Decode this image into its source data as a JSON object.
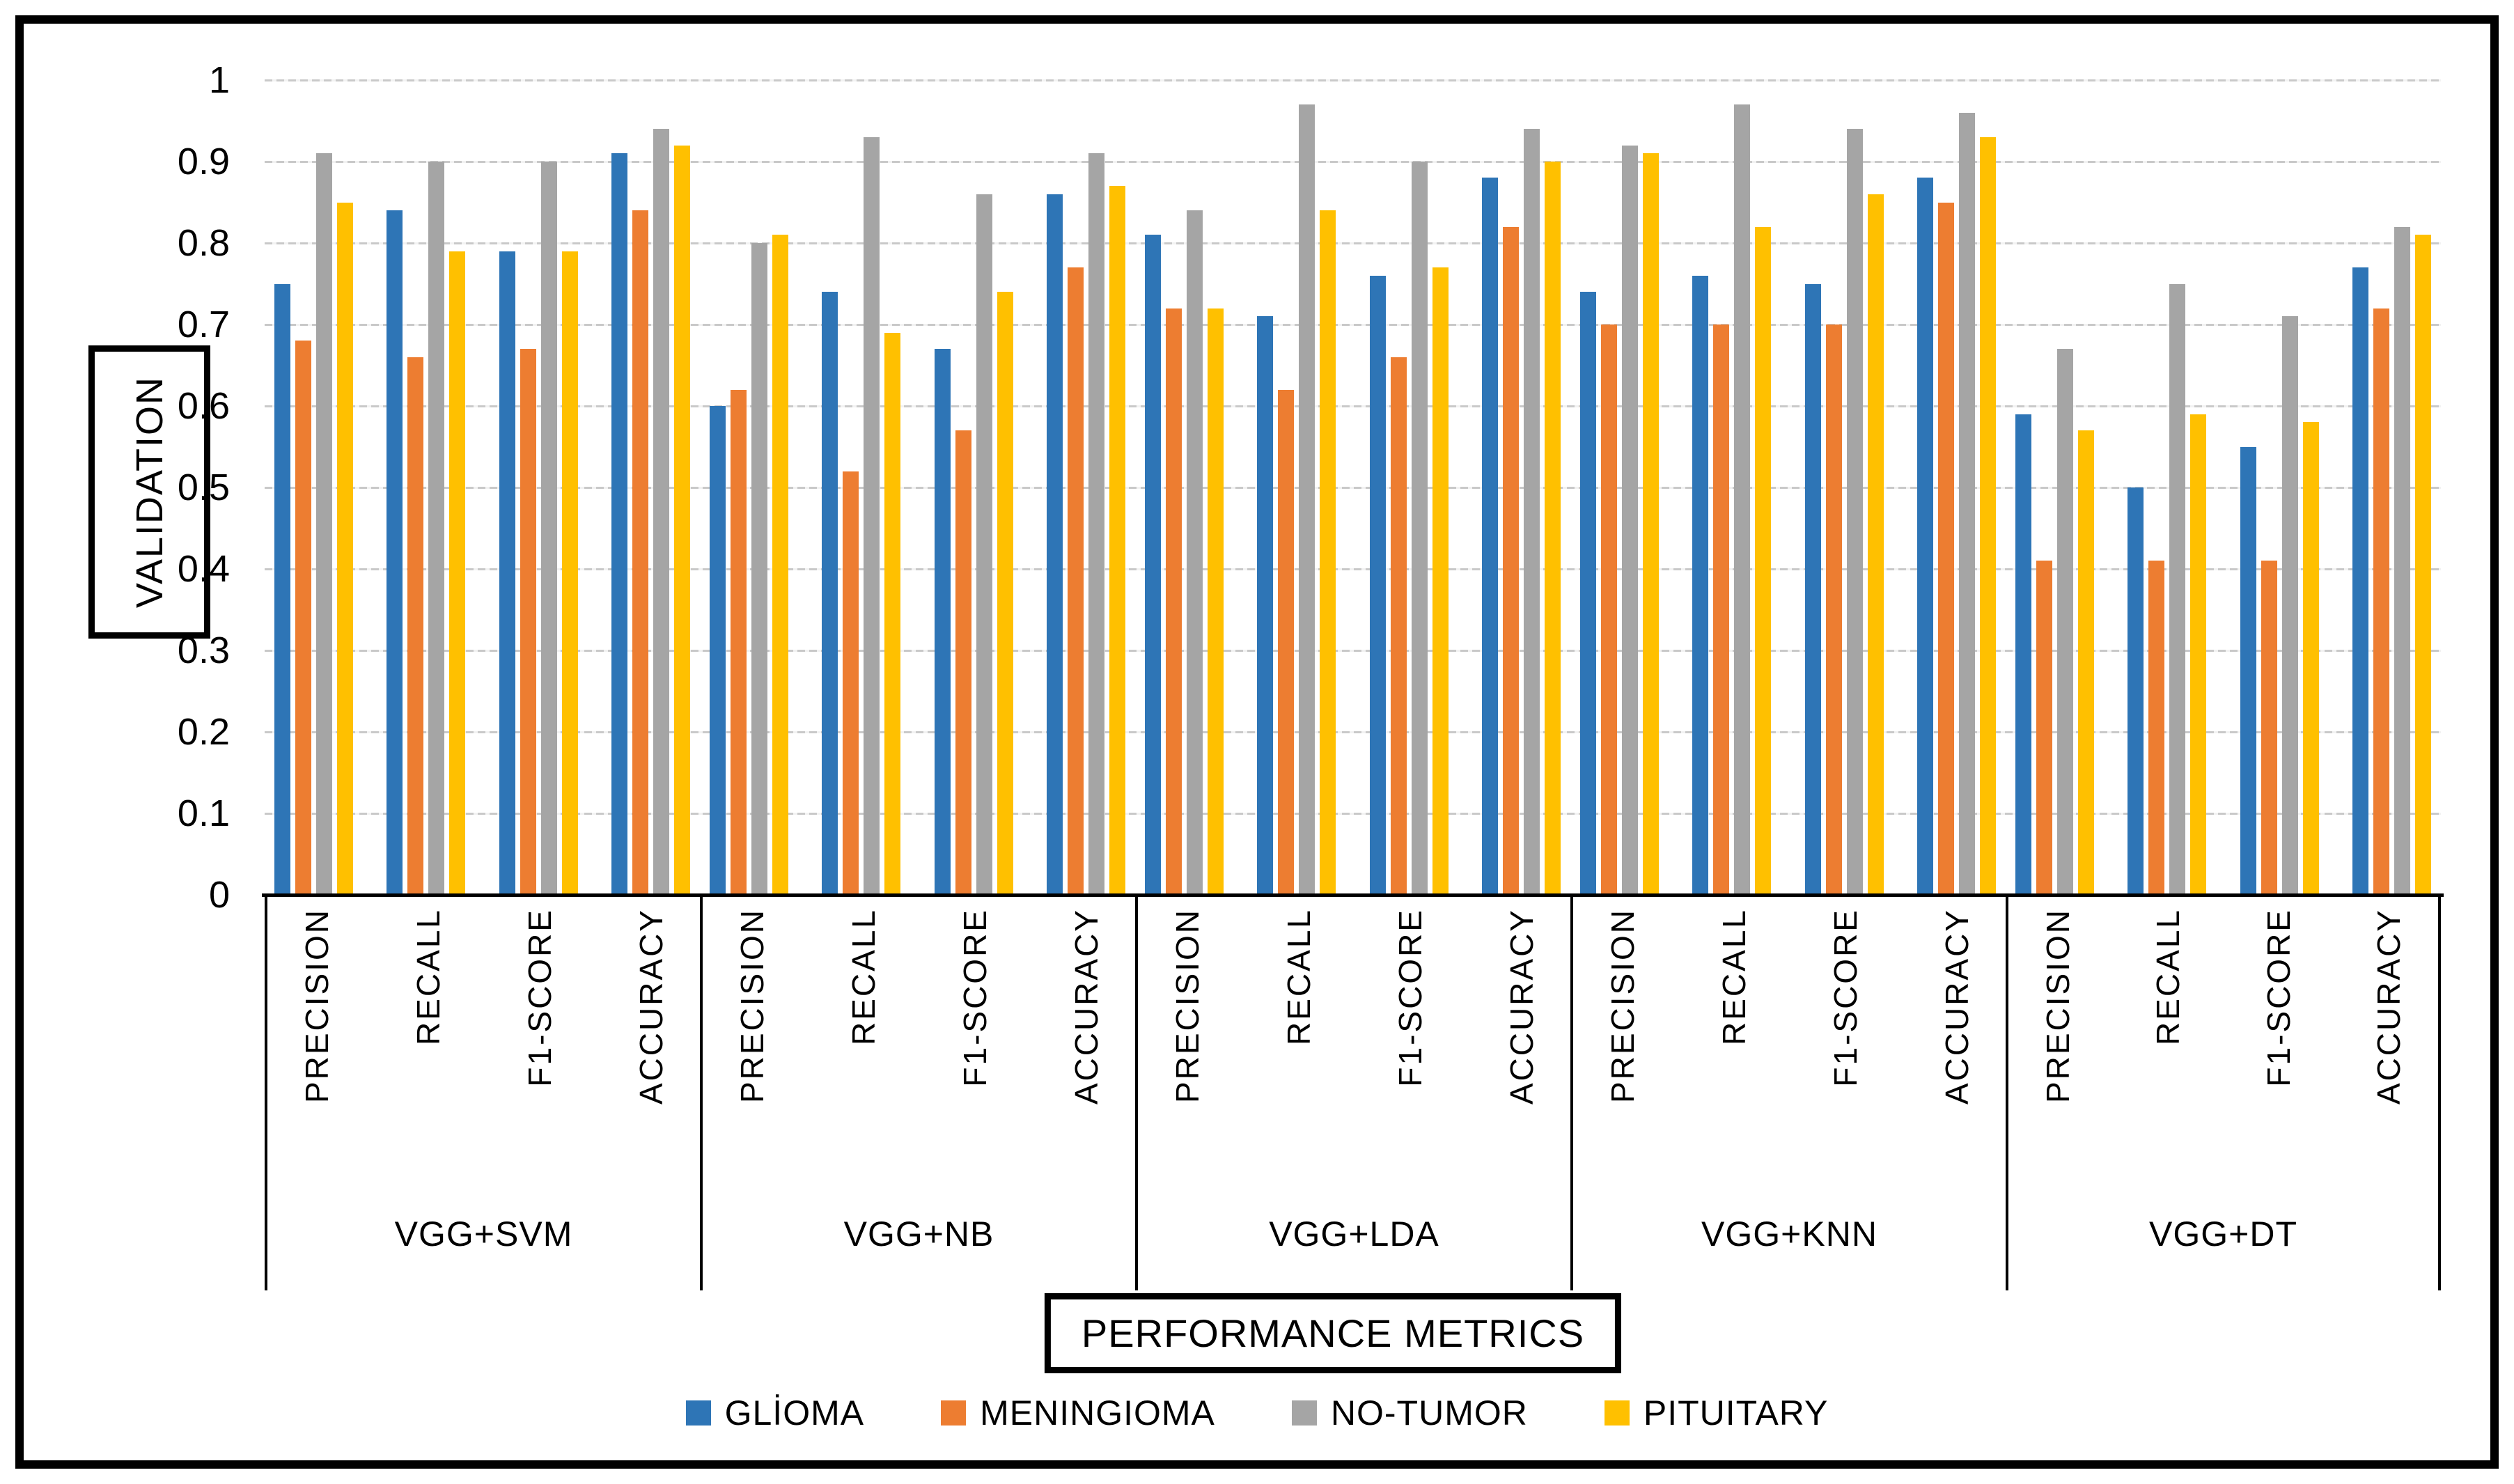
{
  "chart_data": {
    "type": "bar",
    "title": "",
    "ylabel": "VALIDATION",
    "xlabel": "PERFORMANCE METRICS",
    "ylim": [
      0,
      1
    ],
    "ytick_step": 0.1,
    "yticks": [
      "1",
      "0.9",
      "0.8",
      "0.7",
      "0.6",
      "0.5",
      "0.4",
      "0.3",
      "0.2",
      "0.1",
      "0"
    ],
    "grid": true,
    "gridline_color": "#C9C9C9",
    "axis_color": "#000000",
    "legend_position": "bottom",
    "groups": [
      "VGG+SVM",
      "VGG+NB",
      "VGG+LDA",
      "VGG+KNN",
      "VGG+DT"
    ],
    "metrics": [
      "PRECISION",
      "RECALL",
      "F1-SCORE",
      "ACCURACY"
    ],
    "series": [
      {
        "name": "GLİOMA",
        "color": "#2E75B6",
        "pattern": "solid",
        "values": [
          [
            0.75,
            0.84,
            0.79,
            0.91
          ],
          [
            0.6,
            0.74,
            0.67,
            0.86
          ],
          [
            0.81,
            0.71,
            0.76,
            0.88
          ],
          [
            0.74,
            0.76,
            0.75,
            0.88
          ],
          [
            0.59,
            0.5,
            0.55,
            0.77
          ]
        ]
      },
      {
        "name": "MENINGIOMA",
        "color": "#ED7D31",
        "pattern": "solid",
        "values": [
          [
            0.68,
            0.66,
            0.67,
            0.84
          ],
          [
            0.62,
            0.52,
            0.57,
            0.77
          ],
          [
            0.72,
            0.62,
            0.66,
            0.82
          ],
          [
            0.7,
            0.7,
            0.7,
            0.85
          ],
          [
            0.41,
            0.41,
            0.41,
            0.72
          ]
        ]
      },
      {
        "name": "NO-TUMOR",
        "color": "#A5A5A5",
        "pattern": "dotted",
        "values": [
          [
            0.91,
            0.9,
            0.9,
            0.94
          ],
          [
            0.8,
            0.93,
            0.86,
            0.91
          ],
          [
            0.84,
            0.97,
            0.9,
            0.94
          ],
          [
            0.92,
            0.97,
            0.94,
            0.96
          ],
          [
            0.67,
            0.75,
            0.71,
            0.82
          ]
        ]
      },
      {
        "name": "PITUITARY",
        "color": "#FFC000",
        "pattern": "solid",
        "values": [
          [
            0.85,
            0.79,
            0.79,
            0.92
          ],
          [
            0.81,
            0.69,
            0.74,
            0.87
          ],
          [
            0.72,
            0.84,
            0.77,
            0.9
          ],
          [
            0.91,
            0.82,
            0.86,
            0.93
          ],
          [
            0.57,
            0.59,
            0.58,
            0.81
          ]
        ]
      }
    ]
  }
}
